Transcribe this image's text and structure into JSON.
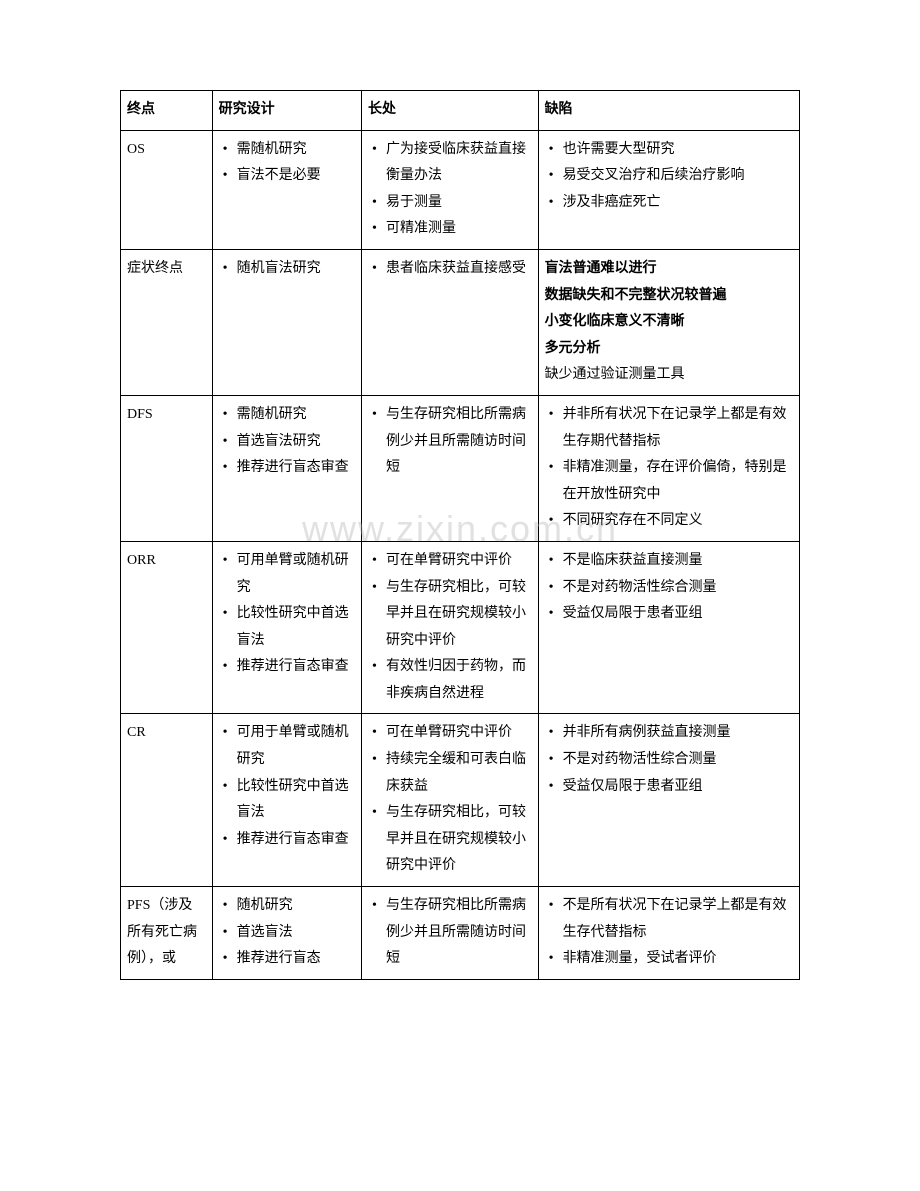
{
  "watermark": "www.zixin.com.cn",
  "headers": {
    "col1": "终点",
    "col2": "研究设计",
    "col3": "长处",
    "col4": "缺陷"
  },
  "rows": [
    {
      "endpoint": "OS",
      "design": [
        "需随机研究",
        "盲法不是必要"
      ],
      "pros": [
        "广为接受临床获益直接衡量办法",
        "易于测量",
        "可精准测量"
      ],
      "cons": [
        "也许需要大型研究",
        "易受交叉治疗和后续治疗影响",
        "涉及非癌症死亡"
      ]
    },
    {
      "endpoint": "症状终点",
      "design": [
        "随机盲法研究"
      ],
      "pros": [
        "患者临床获益直接感受"
      ],
      "cons_bold": [
        "盲法普通难以进行",
        "数据缺失和不完整状况较普遍",
        "小变化临床意义不清晰",
        "多元分析"
      ],
      "cons_plain": [
        "缺少通过验证测量工具"
      ]
    },
    {
      "endpoint": "DFS",
      "design": [
        "需随机研究",
        "首选盲法研究",
        "推荐进行盲态审查"
      ],
      "pros": [
        "与生存研究相比所需病例少并且所需随访时间短"
      ],
      "cons": [
        "并非所有状况下在记录学上都是有效生存期代替指标",
        "非精准测量，存在评价偏倚，特别是在开放性研究中",
        "不同研究存在不同定义"
      ]
    },
    {
      "endpoint": "ORR",
      "design": [
        "可用单臂或随机研究",
        "比较性研究中首选盲法",
        "推荐进行盲态审查"
      ],
      "pros": [
        "可在单臂研究中评价",
        "与生存研究相比，可较早并且在研究规模较小研究中评价",
        "有效性归因于药物，而非疾病自然进程"
      ],
      "cons": [
        "不是临床获益直接测量",
        "不是对药物活性综合测量",
        "受益仅局限于患者亚组"
      ]
    },
    {
      "endpoint": "CR",
      "design": [
        "可用于单臂或随机研究",
        "比较性研究中首选盲法",
        "推荐进行盲态审查"
      ],
      "pros": [
        "可在单臂研究中评价",
        "持续完全缓和可表白临床获益",
        "与生存研究相比，可较早并且在研究规模较小研究中评价"
      ],
      "cons": [
        "并非所有病例获益直接测量",
        "不是对药物活性综合测量",
        "受益仅局限于患者亚组"
      ]
    },
    {
      "endpoint": "PFS（涉及所有死亡病例），或",
      "design": [
        "随机研究",
        "首选盲法",
        "推荐进行盲态"
      ],
      "pros": [
        "与生存研究相比所需病例少并且所需随访时间短"
      ],
      "cons": [
        "不是所有状况下在记录学上都是有效生存代替指标",
        "非精准测量，受试者评价"
      ]
    }
  ]
}
